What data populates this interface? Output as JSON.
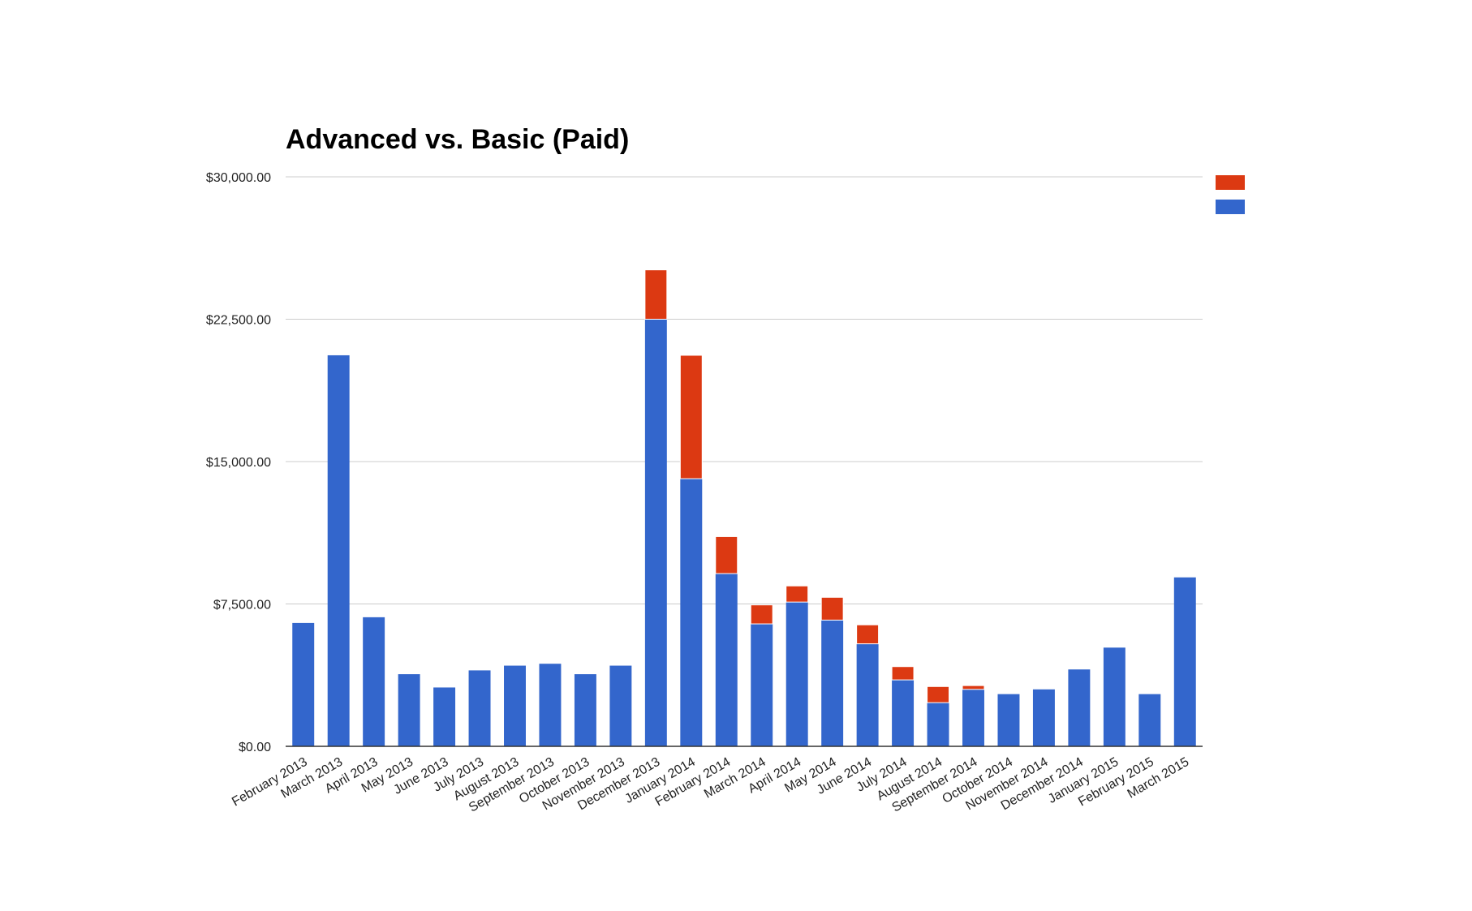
{
  "chart_data": {
    "type": "bar",
    "stacked": true,
    "title": "Advanced vs. Basic (Paid)",
    "xlabel": "",
    "ylabel": "",
    "ylim": [
      0,
      30000
    ],
    "yticks": [
      0,
      7500,
      15000,
      22500,
      30000
    ],
    "ytick_labels": [
      "$0.00",
      "$7,500.00",
      "$15,000.00",
      "$22,500.00",
      "$30,000.00"
    ],
    "grid": true,
    "legend_position": "right",
    "categories": [
      "February 2013",
      "March 2013",
      "April 2013",
      "May 2013",
      "June 2013",
      "July 2013",
      "August 2013",
      "September 2013",
      "October 2013",
      "November 2013",
      "December 2013",
      "January 2014",
      "February 2014",
      "March 2014",
      "April 2014",
      "May 2014",
      "June 2014",
      "July 2014",
      "August 2014",
      "September 2014",
      "October 2014",
      "November 2014",
      "December 2014",
      "January 2015",
      "February 2015",
      "March 2015"
    ],
    "series": [
      {
        "color": "#3366cc",
        "values": [
          6500,
          20600,
          6800,
          3800,
          3100,
          4000,
          4250,
          4350,
          3800,
          4250,
          22500,
          14100,
          9100,
          6450,
          7600,
          6650,
          5400,
          3500,
          2300,
          3000,
          2750,
          3000,
          4050,
          5200,
          2750,
          8900
        ]
      },
      {
        "color": "#dc3912",
        "values": [
          0,
          0,
          0,
          0,
          0,
          0,
          0,
          0,
          0,
          0,
          2600,
          6500,
          1950,
          1000,
          850,
          1200,
          1000,
          700,
          850,
          200,
          0,
          0,
          0,
          0,
          0,
          0
        ]
      }
    ]
  }
}
